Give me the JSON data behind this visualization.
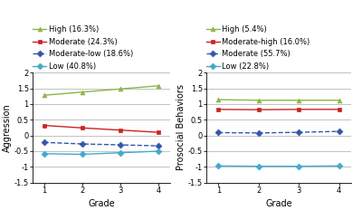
{
  "left": {
    "ylabel": "Aggression",
    "xlabel": "Grade",
    "xlim": [
      0.7,
      4.3
    ],
    "ylim": [
      -1.5,
      2.0
    ],
    "yticks": [
      -1.5,
      -1.0,
      -0.5,
      0.0,
      0.5,
      1.0,
      1.5,
      2.0
    ],
    "ytick_labels": [
      "-1.5",
      "-1",
      "-0.5",
      "0",
      "0.5",
      "1",
      "1.5",
      "2"
    ],
    "xticks": [
      1,
      2,
      3,
      4
    ],
    "series": [
      {
        "label": "High (16.3%)",
        "x": [
          1,
          2,
          3,
          4
        ],
        "y": [
          1.28,
          1.38,
          1.48,
          1.58
        ],
        "color": "#8db646",
        "linestyle": "-",
        "marker": "^",
        "dashed": false
      },
      {
        "label": "Moderate (24.3%)",
        "x": [
          1,
          2,
          3,
          4
        ],
        "y": [
          0.32,
          0.24,
          0.17,
          0.1
        ],
        "color": "#cc2222",
        "linestyle": "-",
        "marker": "s",
        "dashed": false
      },
      {
        "label": "Moderate-low (18.6%)",
        "x": [
          1,
          2,
          3,
          4
        ],
        "y": [
          -0.22,
          -0.27,
          -0.3,
          -0.33
        ],
        "color": "#3355aa",
        "linestyle": "--",
        "marker": "D",
        "dashed": true
      },
      {
        "label": "Low (40.8%)",
        "x": [
          1,
          2,
          3,
          4
        ],
        "y": [
          -0.58,
          -0.6,
          -0.55,
          -0.5
        ],
        "color": "#44aacc",
        "linestyle": "-",
        "marker": "D",
        "dashed": false
      }
    ]
  },
  "right": {
    "ylabel": "Prosocial Behaviors",
    "xlabel": "Grade",
    "xlim": [
      0.7,
      4.3
    ],
    "ylim": [
      -1.5,
      2.0
    ],
    "yticks": [
      -1.5,
      -1.0,
      -0.5,
      0.0,
      0.5,
      1.0,
      1.5,
      2.0
    ],
    "ytick_labels": [
      "-1.5",
      "-1",
      "-0.5",
      "0",
      "0.5",
      "1",
      "1.5",
      "2"
    ],
    "xticks": [
      1,
      2,
      3,
      4
    ],
    "series": [
      {
        "label": "High (5.4%)",
        "x": [
          1,
          2,
          3,
          4
        ],
        "y": [
          1.14,
          1.12,
          1.12,
          1.12
        ],
        "color": "#8db646",
        "linestyle": "-",
        "marker": "^",
        "dashed": false
      },
      {
        "label": "Moderate-high (16.0%)",
        "x": [
          1,
          2,
          3,
          4
        ],
        "y": [
          0.83,
          0.82,
          0.83,
          0.83
        ],
        "color": "#cc2222",
        "linestyle": "-",
        "marker": "s",
        "dashed": false
      },
      {
        "label": "Moderate (55.7%)",
        "x": [
          1,
          2,
          3,
          4
        ],
        "y": [
          0.09,
          0.08,
          0.1,
          0.13
        ],
        "color": "#3355aa",
        "linestyle": "--",
        "marker": "D",
        "dashed": true
      },
      {
        "label": "Low (22.8%)",
        "x": [
          1,
          2,
          3,
          4
        ],
        "y": [
          -0.97,
          -0.98,
          -0.98,
          -0.97
        ],
        "color": "#44aacc",
        "linestyle": "-",
        "marker": "D",
        "dashed": false
      }
    ]
  },
  "background_color": "#ffffff",
  "legend_fontsize": 6.0,
  "axis_fontsize": 7,
  "tick_fontsize": 6,
  "linewidth": 1.0,
  "markersize": 3.5
}
